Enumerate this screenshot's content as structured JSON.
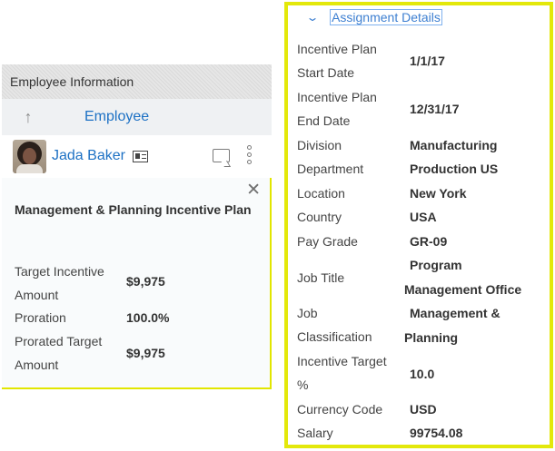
{
  "employee_panel": {
    "header": "Employee Information",
    "tab_label": "Employee",
    "employee_name": "Jada Baker"
  },
  "incentive_popup": {
    "title": "Management & Planning Incentive Plan",
    "rows": [
      {
        "label_lines": [
          "Target Incentive",
          "Amount"
        ],
        "value": "$9,975"
      },
      {
        "label_lines": [
          "Proration"
        ],
        "value": "100.0%"
      },
      {
        "label_lines": [
          "Prorated Target",
          "Amount"
        ],
        "value": "$9,975"
      }
    ]
  },
  "assignment_details": {
    "title": "Assignment Details",
    "rows": [
      {
        "label_lines": [
          "Incentive Plan",
          "Start Date"
        ],
        "value_lines": [
          "1/1/17"
        ]
      },
      {
        "label_lines": [
          "Incentive Plan",
          "End Date"
        ],
        "value_lines": [
          "12/31/17"
        ]
      },
      {
        "label_lines": [
          "Division"
        ],
        "value_lines": [
          "Manufacturing"
        ]
      },
      {
        "label_lines": [
          "Department"
        ],
        "value_lines": [
          "Production US"
        ]
      },
      {
        "label_lines": [
          "Location"
        ],
        "value_lines": [
          "New York"
        ]
      },
      {
        "label_lines": [
          "Country"
        ],
        "value_lines": [
          "USA"
        ]
      },
      {
        "label_lines": [
          "Pay Grade"
        ],
        "value_lines": [
          "GR-09"
        ]
      },
      {
        "label_lines": [
          "Job Title"
        ],
        "value_lines": [
          "Program",
          "Management Office"
        ]
      },
      {
        "label_lines": [
          "Job",
          "Classification"
        ],
        "value_lines": [
          "Management &",
          "Planning"
        ]
      },
      {
        "label_lines": [
          "Incentive Target",
          "%"
        ],
        "value_lines": [
          "10.0"
        ]
      },
      {
        "label_lines": [
          "Currency Code"
        ],
        "value_lines": [
          "USD"
        ]
      },
      {
        "label_lines": [
          "Salary"
        ],
        "value_lines": [
          "99754.08"
        ]
      }
    ]
  },
  "icons": {
    "up_arrow": "arrow-up-icon",
    "contact_card": "contact-card-icon",
    "chat": "chat-icon",
    "more": "more-vertical-icon",
    "close": "close-icon",
    "collapse": "chevron-down-icon"
  },
  "colors": {
    "link_blue": "#1d71c4",
    "highlight_yellow": "#e3e80b",
    "title_blue": "#3d7fd1"
  }
}
